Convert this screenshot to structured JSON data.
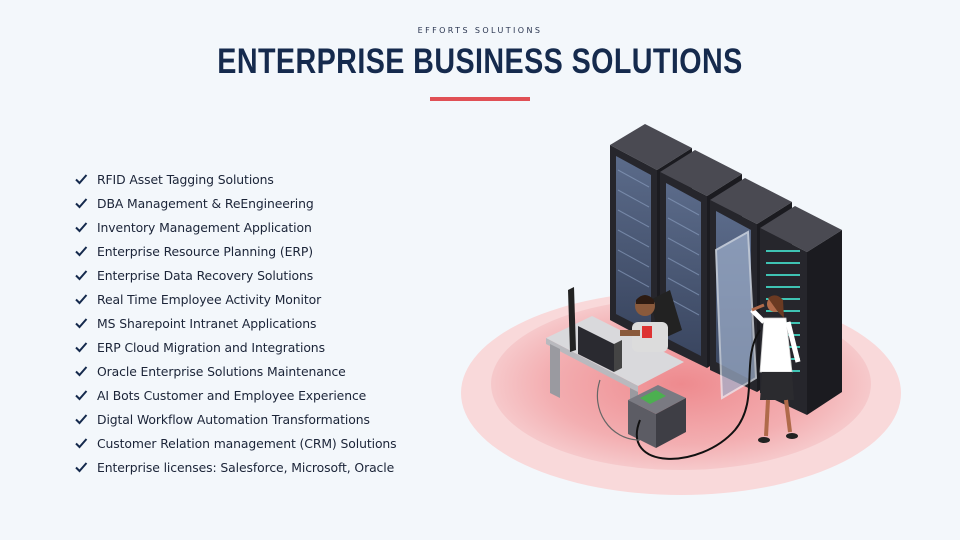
{
  "header": {
    "eyebrow": "EFFORTS SOLUTIONS",
    "title": "ENTERPRISE BUSINESS SOLUTIONS"
  },
  "colors": {
    "accent": "#e05055",
    "title": "#152a4d",
    "background": "#f3f7fb"
  },
  "icons": {
    "bullet": "checkmark-icon",
    "illustration": "server-room-illustration"
  },
  "solutions": [
    "RFID Asset Tagging Solutions",
    "DBA Management & ReEngineering",
    "Inventory Management Application",
    "Enterprise Resource Planning (ERP)",
    "Enterprise Data Recovery Solutions",
    "Real Time Employee Activity Monitor",
    "MS Sharepoint Intranet Applications",
    "ERP Cloud Migration and Integrations",
    "Oracle Enterprise Solutions Maintenance",
    "AI Bots Customer and Employee Experience",
    "Digtal Workflow Automation Transformations",
    "Customer Relation management (CRM) Solutions",
    "Enterprise licenses: Salesforce, Microsoft, Oracle"
  ]
}
